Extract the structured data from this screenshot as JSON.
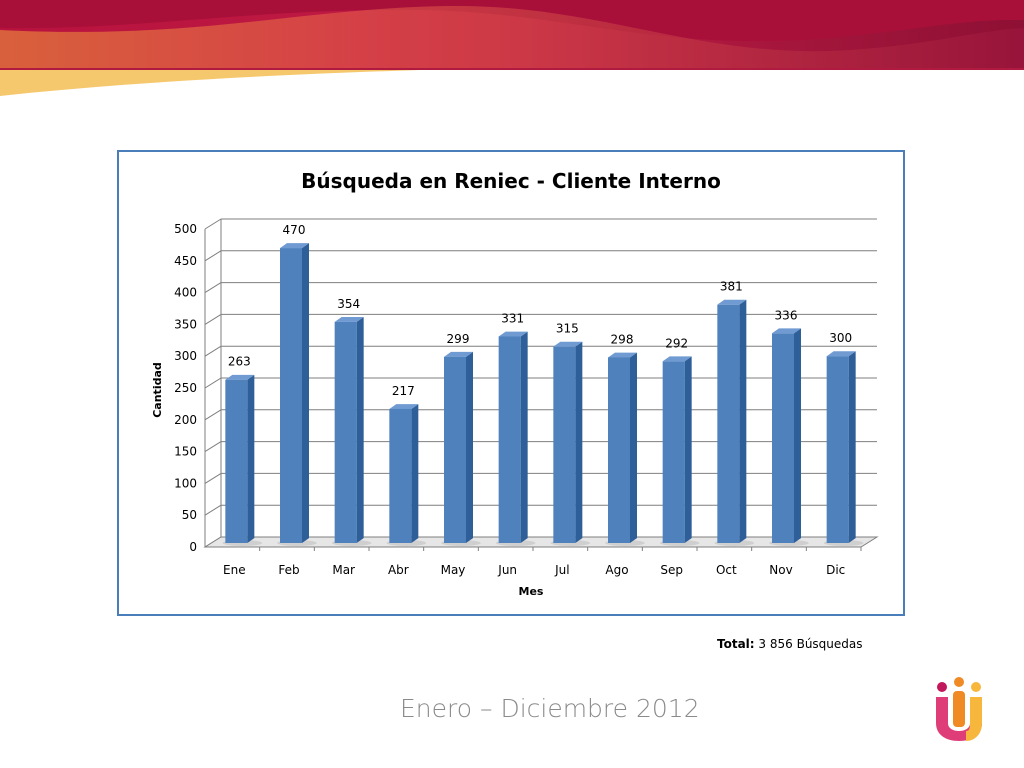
{
  "colors": {
    "bar": "#4f81bd",
    "bar_side": "#2f5f98",
    "bar_top": "#6f9ad2",
    "frame": "#4a7ebb"
  },
  "footer": {
    "total_label": "Total:",
    "total_value": "3 856 Búsquedas",
    "period": "Enero – Diciembre 2012"
  },
  "chart_data": {
    "type": "bar",
    "title": "Búsqueda en Reniec - Cliente Interno",
    "xlabel": "Mes",
    "ylabel": "Cantidad",
    "ylim": [
      0,
      500
    ],
    "yticks": [
      "0",
      "50",
      "100",
      "150",
      "200",
      "250",
      "300",
      "350",
      "400",
      "450",
      "500"
    ],
    "categories": [
      "Ene",
      "Feb",
      "Mar",
      "Abr",
      "May",
      "Jun",
      "Jul",
      "Ago",
      "Sep",
      "Oct",
      "Nov",
      "Dic"
    ],
    "values": [
      263,
      470,
      354,
      217,
      299,
      331,
      315,
      298,
      292,
      381,
      336,
      300
    ],
    "grid": true,
    "legend": false
  }
}
